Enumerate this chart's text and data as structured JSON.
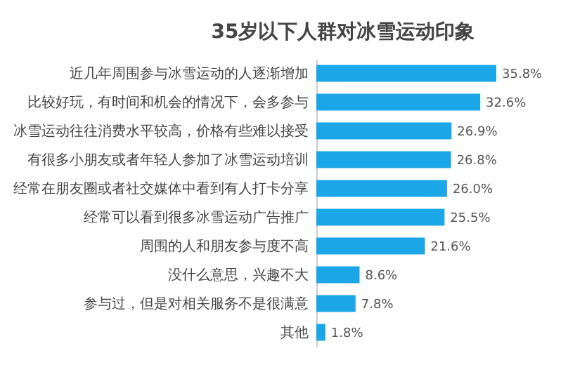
{
  "chart_data": {
    "type": "bar",
    "orientation": "horizontal",
    "title": "35岁以下人群对冰雪运动印象",
    "categories": [
      "近几年周围参与冰雪运动的人逐渐增加",
      "比较好玩，有时间和机会的情况下，会多参与",
      "冰雪运动往往消费水平较高，价格有些难以接受",
      "有很多小朋友或者年轻人参加了冰雪运动培训",
      "经常在朋友圈或者社交媒体中看到有人打卡分享",
      "经常可以看到很多冰雪运动广告推广",
      "周围的人和朋友参与度不高",
      "没什么意思，兴趣不大",
      "参与过，但是对相关服务不是很满意",
      "其他"
    ],
    "values": [
      35.8,
      32.6,
      26.9,
      26.8,
      26.0,
      25.5,
      21.6,
      8.6,
      7.8,
      1.8
    ],
    "value_labels": [
      "35.8%",
      "32.6%",
      "26.9%",
      "26.8%",
      "26.0%",
      "25.5%",
      "21.6%",
      "8.6%",
      "7.8%",
      "1.8%"
    ],
    "color": "#1ba6e8"
  }
}
